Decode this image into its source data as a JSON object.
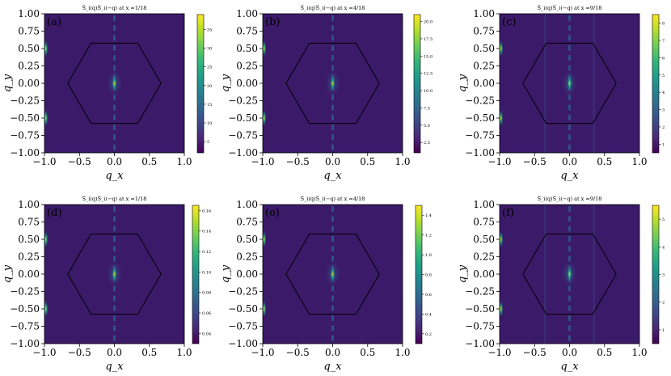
{
  "figure": {
    "axis_labels": {
      "x": "q_x",
      "y": "q_y"
    },
    "x_ticks": [
      "−1.0",
      "−0.5",
      "0.0",
      "0.5",
      "1.0"
    ],
    "y_ticks": [
      "1.00",
      "0.75",
      "0.50",
      "0.25",
      "0.00",
      "−0.25",
      "−0.50",
      "−0.75",
      "−1.00"
    ],
    "colors": {
      "low": "#440154",
      "mid": "#21918c",
      "high": "#fde725",
      "background": "#3b1a6a",
      "hexagon": "#000000"
    }
  },
  "chart_data": [
    {
      "type": "heatmap",
      "panel": "(a)",
      "title": "S̅_i(q)S̅_i(−q) at x =1/18",
      "xlabel": "q_x",
      "ylabel": "q_y",
      "xlim": [
        -1.0,
        1.0
      ],
      "ylim": [
        -1.0,
        1.0
      ],
      "colorbar_ticks": [
        "5",
        "10",
        "15",
        "20",
        "25",
        "30",
        "35"
      ],
      "vmin": 2,
      "vmax": 39,
      "overlay": "hexagonal Brillouin zone",
      "peaks": [
        {
          "x": 0.0,
          "y": 0.0,
          "level": 1.0
        },
        {
          "x": -1.0,
          "y": 0.5,
          "level": 0.6
        },
        {
          "x": -1.0,
          "y": -0.5,
          "level": 0.6
        }
      ]
    },
    {
      "type": "heatmap",
      "panel": "(b)",
      "title": "S̅_i(q)S̅_i(−q) at x =4/18",
      "xlabel": "q_x",
      "ylabel": "q_y",
      "xlim": [
        -1.0,
        1.0
      ],
      "ylim": [
        -1.0,
        1.0
      ],
      "colorbar_ticks": [
        "2.5",
        "5.0",
        "7.5",
        "10.0",
        "12.5",
        "15.0",
        "17.5",
        "20.0"
      ],
      "vmin": 1,
      "vmax": 21,
      "overlay": "hexagonal Brillouin zone",
      "peaks": [
        {
          "x": 0.0,
          "y": 0.0,
          "level": 1.0
        },
        {
          "x": -1.0,
          "y": 0.5,
          "level": 0.6
        },
        {
          "x": -1.0,
          "y": -0.5,
          "level": 0.6
        }
      ]
    },
    {
      "type": "heatmap",
      "panel": "(c)",
      "title": "S̅_i(q)S̅_i(−q) at x =9/18",
      "xlabel": "q_x",
      "ylabel": "q_y",
      "xlim": [
        -1.0,
        1.0
      ],
      "ylim": [
        -1.0,
        1.0
      ],
      "colorbar_ticks": [
        "1",
        "2",
        "3",
        "4",
        "5",
        "6",
        "7",
        "8"
      ],
      "vmin": 0.5,
      "vmax": 8.5,
      "overlay": "hexagonal Brillouin zone",
      "peaks": [
        {
          "x": 0.0,
          "y": 0.0,
          "level": 1.0
        },
        {
          "x": -1.0,
          "y": 0.5,
          "level": 0.6
        },
        {
          "x": -1.0,
          "y": -0.5,
          "level": 0.6
        }
      ]
    },
    {
      "type": "heatmap",
      "panel": "(d)",
      "title": "S̅_i(q)S̅_i(−q) at x =1/18",
      "xlabel": "q_x",
      "ylabel": "q_y",
      "xlim": [
        -1.0,
        1.0
      ],
      "ylim": [
        -1.0,
        1.0
      ],
      "colorbar_ticks": [
        "0.04",
        "0.06",
        "0.08",
        "0.10",
        "0.12",
        "0.14",
        "0.16"
      ],
      "vmin": 0.03,
      "vmax": 0.165,
      "overlay": "hexagonal Brillouin zone",
      "peaks": [
        {
          "x": 0.0,
          "y": 0.0,
          "level": 1.0
        },
        {
          "x": -1.0,
          "y": 0.5,
          "level": 0.6
        },
        {
          "x": -1.0,
          "y": -0.5,
          "level": 0.6
        }
      ]
    },
    {
      "type": "heatmap",
      "panel": "(e)",
      "title": "S̅_i(q)S̅_i(−q) at x =4/18",
      "xlabel": "q_x",
      "ylabel": "q_y",
      "xlim": [
        -1.0,
        1.0
      ],
      "ylim": [
        -1.0,
        1.0
      ],
      "colorbar_ticks": [
        "0.2",
        "0.4",
        "0.6",
        "0.8",
        "1.0",
        "1.2",
        "1.4"
      ],
      "vmin": 0.1,
      "vmax": 1.5,
      "overlay": "hexagonal Brillouin zone",
      "peaks": [
        {
          "x": 0.0,
          "y": 0.0,
          "level": 1.0
        },
        {
          "x": -1.0,
          "y": 0.5,
          "level": 0.6
        },
        {
          "x": -1.0,
          "y": -0.5,
          "level": 0.6
        }
      ]
    },
    {
      "type": "heatmap",
      "panel": "(f)",
      "title": "S̅_i(q)S̅_i(−q) at x =9/18",
      "xlabel": "q_x",
      "ylabel": "q_y",
      "xlim": [
        -1.0,
        1.0
      ],
      "ylim": [
        -1.0,
        1.0
      ],
      "colorbar_ticks": [
        "1",
        "2",
        "3",
        "4",
        "5"
      ],
      "vmin": 0.5,
      "vmax": 5.5,
      "overlay": "hexagonal Brillouin zone",
      "peaks": [
        {
          "x": 0.0,
          "y": 0.0,
          "level": 1.0
        },
        {
          "x": -1.0,
          "y": 0.5,
          "level": 0.6
        },
        {
          "x": -1.0,
          "y": -0.5,
          "level": 0.6
        }
      ]
    }
  ]
}
